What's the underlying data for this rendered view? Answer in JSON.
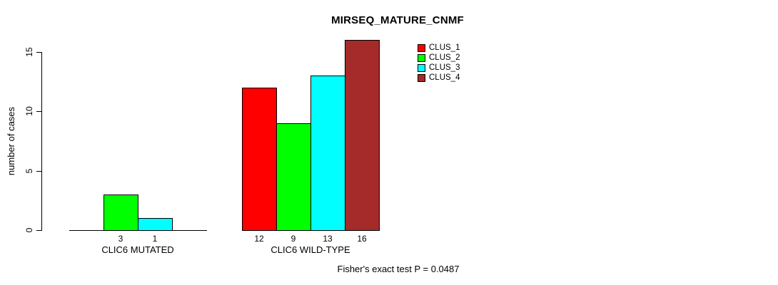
{
  "chart_data": {
    "type": "bar",
    "title": "MIRSEQ_MATURE_CNMF",
    "ylabel": "number of cases",
    "xlabel": "",
    "ylim": [
      0,
      15
    ],
    "yticks": [
      0,
      5,
      10,
      15
    ],
    "grid": "off",
    "legend_position": "top-right",
    "series": [
      {
        "name": "CLUS_1",
        "color": "#FF0000"
      },
      {
        "name": "CLUS_2",
        "color": "#00FF00"
      },
      {
        "name": "CLUS_3",
        "color": "#00FFFF"
      },
      {
        "name": "CLUS_4",
        "color": "#A52A2A"
      }
    ],
    "groups": [
      {
        "label": "CLIC6 MUTATED",
        "values": [
          0,
          3,
          1,
          0
        ],
        "bar_labels": [
          "",
          "3",
          "1",
          ""
        ]
      },
      {
        "label": "CLIC6 WILD-TYPE",
        "values": [
          12,
          9,
          13,
          16
        ],
        "bar_labels": [
          "12",
          "9",
          "13",
          "16"
        ]
      }
    ],
    "annotation": "Fisher's exact test P = 0.0487"
  }
}
